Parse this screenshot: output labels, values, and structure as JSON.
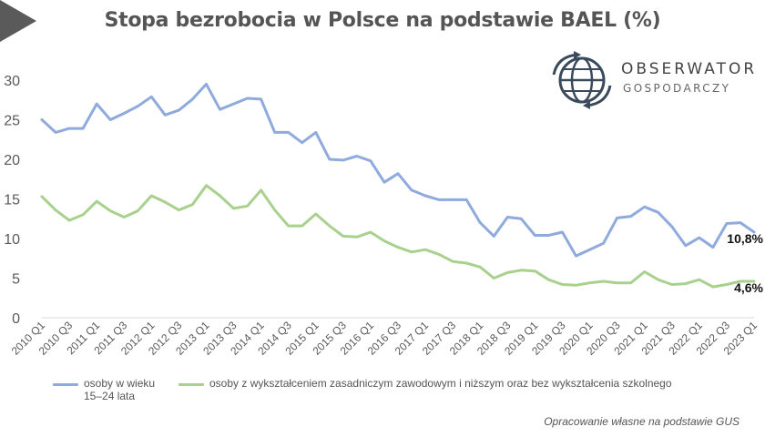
{
  "title": "Stopa bezrobocia w Polsce na podstawie BAEL (%)",
  "logo": {
    "name": "OBSERWATOR",
    "sub": "GOSPODARCZY"
  },
  "source": "Opracowanie własne na podstawie GUS",
  "colors": {
    "youth": "#8FAADC",
    "vocational": "#A9D18E",
    "axis": "#d9d9d9",
    "text": "#595959"
  },
  "chart_data": {
    "type": "line",
    "title": "Stopa bezrobocia w Polsce na podstawie BAEL (%)",
    "ylim": [
      0,
      30
    ],
    "yticks": [
      0,
      5,
      10,
      15,
      20,
      25,
      30
    ],
    "categories": [
      "2010 Q1",
      "2010 Q2",
      "2010 Q3",
      "2010 Q4",
      "2011 Q1",
      "2011 Q2",
      "2011 Q3",
      "2011 Q4",
      "2012 Q1",
      "2012 Q2",
      "2012 Q3",
      "2012 Q4",
      "2013 Q1",
      "2013 Q2",
      "2013 Q3",
      "2013 Q4",
      "2014 Q1",
      "2014 Q2",
      "2014 Q3",
      "2014 Q4",
      "2015 Q1",
      "2015 Q2",
      "2015 Q3",
      "2015 Q4",
      "2016 Q1",
      "2016 Q2",
      "2016 Q3",
      "2016 Q4",
      "2017 Q1",
      "2017 Q2",
      "2017 Q3",
      "2017 Q4",
      "2018 Q1",
      "2018 Q2",
      "2018 Q3",
      "2018 Q4",
      "2019 Q1",
      "2019 Q2",
      "2019 Q3",
      "2019 Q4",
      "2020 Q1",
      "2020 Q2",
      "2020 Q3",
      "2020 Q4",
      "2021 Q1",
      "2021 Q2",
      "2021 Q3",
      "2021 Q4",
      "2022 Q1",
      "2022 Q2",
      "2022 Q3",
      "2022 Q4",
      "2023 Q1"
    ],
    "tick_labels": [
      "2010 Q1",
      "2010 Q3",
      "2011 Q1",
      "2011 Q3",
      "2012 Q1",
      "2012 Q3",
      "2013 Q1",
      "2013 Q3",
      "2014 Q1",
      "2014 Q3",
      "2015 Q1",
      "2015 Q3",
      "2016 Q1",
      "2016 Q3",
      "2017 Q1",
      "2017 Q3",
      "2018 Q1",
      "2018 Q3",
      "2019 Q1",
      "2019 Q3",
      "2020 Q1",
      "2020 Q3",
      "2021 Q1",
      "2021 Q3",
      "2022 Q1",
      "2022 Q3",
      "2023 Q1"
    ],
    "series": [
      {
        "name": "osoby w wieku 15–24 lata",
        "legend_lines": [
          "osoby w wieku",
          "15–24 lata"
        ],
        "color": "#8FAADC",
        "values": [
          25.0,
          23.4,
          23.9,
          23.9,
          27.0,
          25.0,
          25.8,
          26.7,
          27.9,
          25.6,
          26.2,
          27.6,
          29.5,
          26.3,
          27.0,
          27.7,
          27.6,
          23.4,
          23.4,
          22.1,
          23.4,
          20.0,
          19.9,
          20.4,
          19.8,
          17.1,
          18.2,
          16.1,
          15.4,
          14.9,
          14.9,
          14.9,
          12.0,
          10.3,
          12.7,
          12.5,
          10.4,
          10.4,
          10.8,
          7.8,
          8.6,
          9.4,
          12.6,
          12.8,
          14.0,
          13.3,
          11.5,
          9.1,
          10.1,
          8.9,
          11.9,
          12.0,
          10.8
        ],
        "end_label": "10,8%"
      },
      {
        "name": "osoby z wykształceniem zasadniczym zawodowym i niższym oraz bez wykształcenia szkolnego",
        "legend_lines": [
          "osoby z wykształceniem zasadniczym zawodowym i niższym oraz bez wykształcenia szkolnego"
        ],
        "color": "#A9D18E",
        "values": [
          15.3,
          13.6,
          12.3,
          13.0,
          14.7,
          13.5,
          12.7,
          13.5,
          15.4,
          14.6,
          13.6,
          14.3,
          16.7,
          15.4,
          13.8,
          14.1,
          16.1,
          13.6,
          11.6,
          11.6,
          13.1,
          11.6,
          10.3,
          10.2,
          10.8,
          9.7,
          8.9,
          8.3,
          8.6,
          8.0,
          7.1,
          6.9,
          6.4,
          5.0,
          5.7,
          6.0,
          5.9,
          4.8,
          4.2,
          4.1,
          4.4,
          4.6,
          4.4,
          4.4,
          5.8,
          4.8,
          4.2,
          4.3,
          4.8,
          3.9,
          4.2,
          4.6,
          4.6
        ],
        "end_label": "4,6%"
      }
    ],
    "grid": false,
    "legend": "bottom"
  }
}
